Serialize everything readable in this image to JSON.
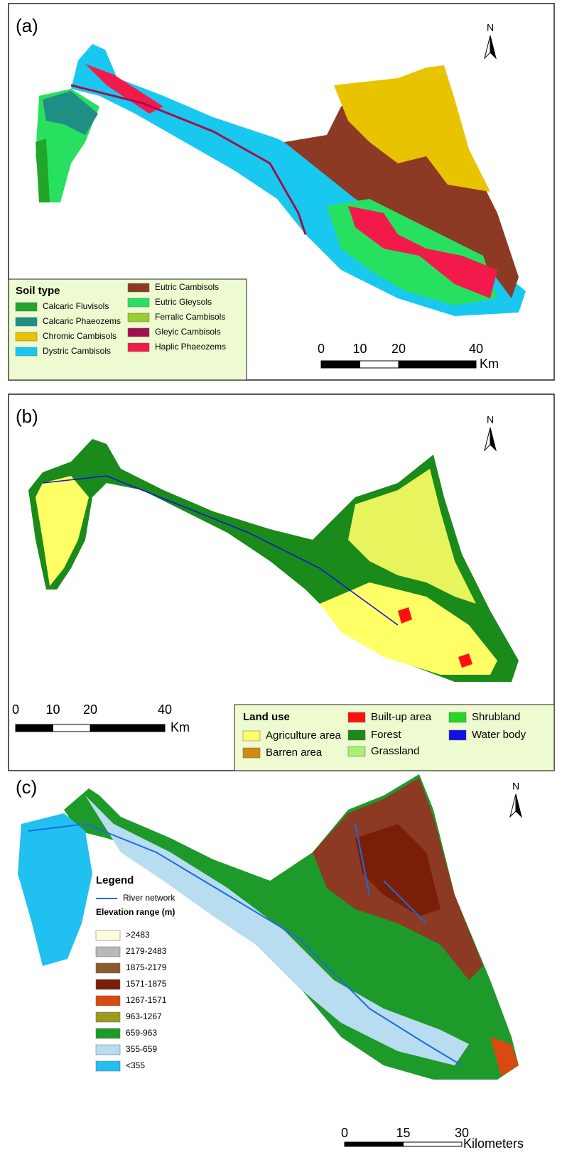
{
  "panels": [
    {
      "label": "(a)",
      "north": "N",
      "legend": {
        "title": "Soil type",
        "items": [
          {
            "name": "Calcaric Fluvisols",
            "color": "#22a52a"
          },
          {
            "name": "Calcaric Phaeozems",
            "color": "#1f8f86"
          },
          {
            "name": "Chromic  Cambisols",
            "color": "#e8c400"
          },
          {
            "name": "Dystric  Cambisols",
            "color": "#18c8ef"
          },
          {
            "name": "Eutric Cambisols",
            "color": "#8c3a24"
          },
          {
            "name": "Eutric Gleysols",
            "color": "#28e060"
          },
          {
            "name": "Ferralic  Cambisols",
            "color": "#9acd32"
          },
          {
            "name": "Gleyic Cambisols",
            "color": "#a01050"
          },
          {
            "name": "Haplic Phaeozems",
            "color": "#f21a4a"
          }
        ]
      },
      "scale": {
        "ticks": [
          0,
          10,
          20,
          40
        ],
        "unit": "Km"
      }
    },
    {
      "label": "(b)",
      "north": "N",
      "legend": {
        "title": "Land use",
        "items": [
          {
            "name": "Agriculture area",
            "color": "#ffff66"
          },
          {
            "name": "Barren area",
            "color": "#d08a10"
          },
          {
            "name": "Built-up area",
            "color": "#ff1010"
          },
          {
            "name": "Forest",
            "color": "#1a8a1a"
          },
          {
            "name": "Grassland",
            "color": "#a8f070"
          },
          {
            "name": "Shrubland",
            "color": "#22d822"
          },
          {
            "name": "Water body",
            "color": "#1010e0"
          }
        ]
      },
      "scale": {
        "ticks": [
          0,
          10,
          20,
          40
        ],
        "unit": "Km"
      }
    },
    {
      "label": "(c)",
      "north": "N",
      "legend": {
        "title": "Legend",
        "river": "River network",
        "subtitle": "Elevation range (m)",
        "items": [
          {
            "name": ">2483",
            "color": "#fffbe0"
          },
          {
            "name": "2179-2483",
            "color": "#b8b8bc"
          },
          {
            "name": "1875-2179",
            "color": "#8c5a30"
          },
          {
            "name": "1571-1875",
            "color": "#7a1e08"
          },
          {
            "name": "1267-1571",
            "color": "#d84a10"
          },
          {
            "name": "963-1267",
            "color": "#9c9a1c"
          },
          {
            "name": "659-963",
            "color": "#1e9a2a"
          },
          {
            "name": "355-659",
            "color": "#b8dcf0"
          },
          {
            "name": "<355",
            "color": "#20c0f0"
          }
        ]
      },
      "scale": {
        "ticks": [
          0,
          15,
          30
        ],
        "unit": "Kilometers"
      }
    }
  ]
}
